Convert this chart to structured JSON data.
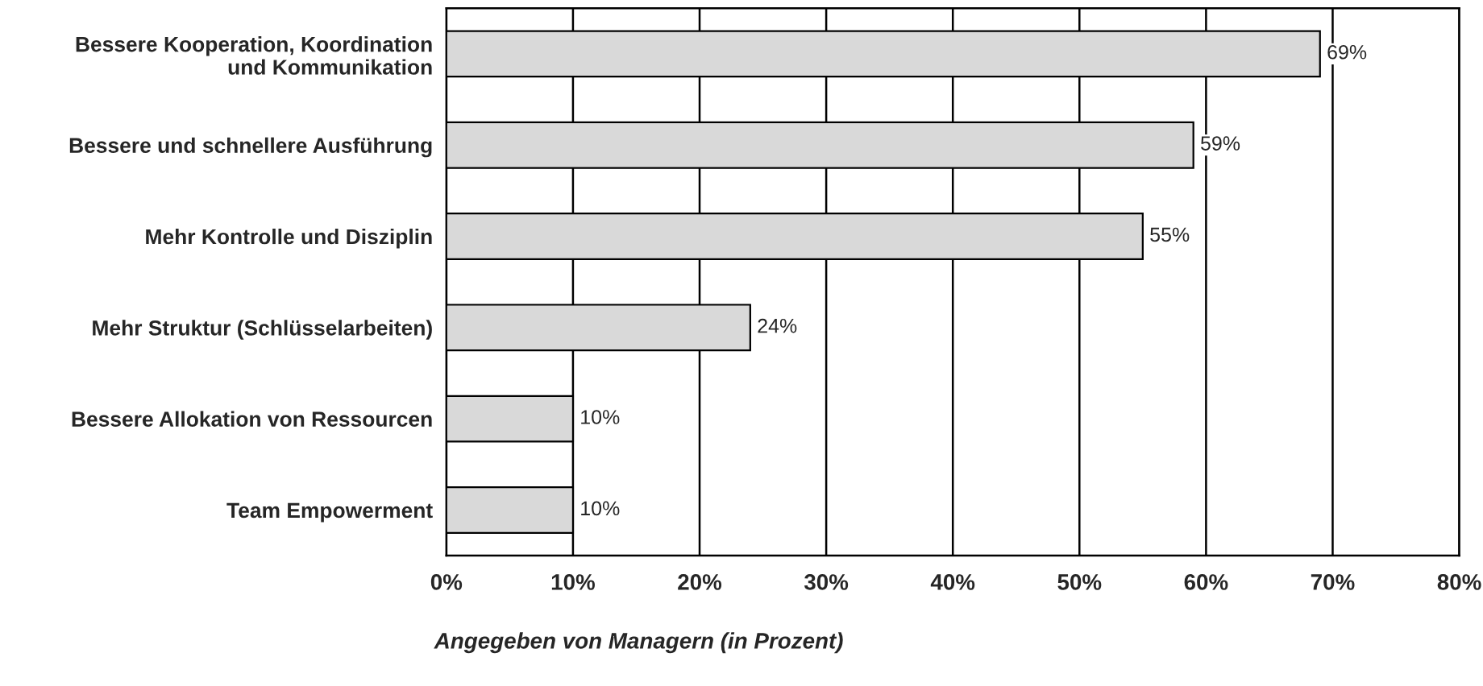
{
  "chart_data": {
    "type": "bar",
    "orientation": "horizontal",
    "xlabel": "Angegeben von Managern (in Prozent)",
    "categories": [
      "Bessere Kooperation, Koordination\nund Kommunikation",
      "Bessere und schnellere Ausführung",
      "Mehr Kontrolle und Disziplin",
      "Mehr Struktur (Schlüsselarbeiten)",
      "Bessere Allokation von Ressourcen",
      "Team Empowerment"
    ],
    "values": [
      69,
      59,
      55,
      24,
      10,
      10
    ],
    "value_labels": [
      "69%",
      "59%",
      "55%",
      "24%",
      "10%",
      "10%"
    ],
    "color": "#d9d9d9",
    "xlim": [
      0,
      80
    ],
    "xticks": [
      {
        "value": 0,
        "label": "0%"
      },
      {
        "value": 10,
        "label": "10%"
      },
      {
        "value": 20,
        "label": "20%"
      },
      {
        "value": 30,
        "label": "30%"
      },
      {
        "value": 40,
        "label": "40%"
      },
      {
        "value": 50,
        "label": "50%"
      },
      {
        "value": 60,
        "label": "60%"
      },
      {
        "value": 70,
        "label": "70%"
      },
      {
        "value": 80,
        "label": "80%"
      }
    ],
    "grid": "x",
    "legend": false
  }
}
